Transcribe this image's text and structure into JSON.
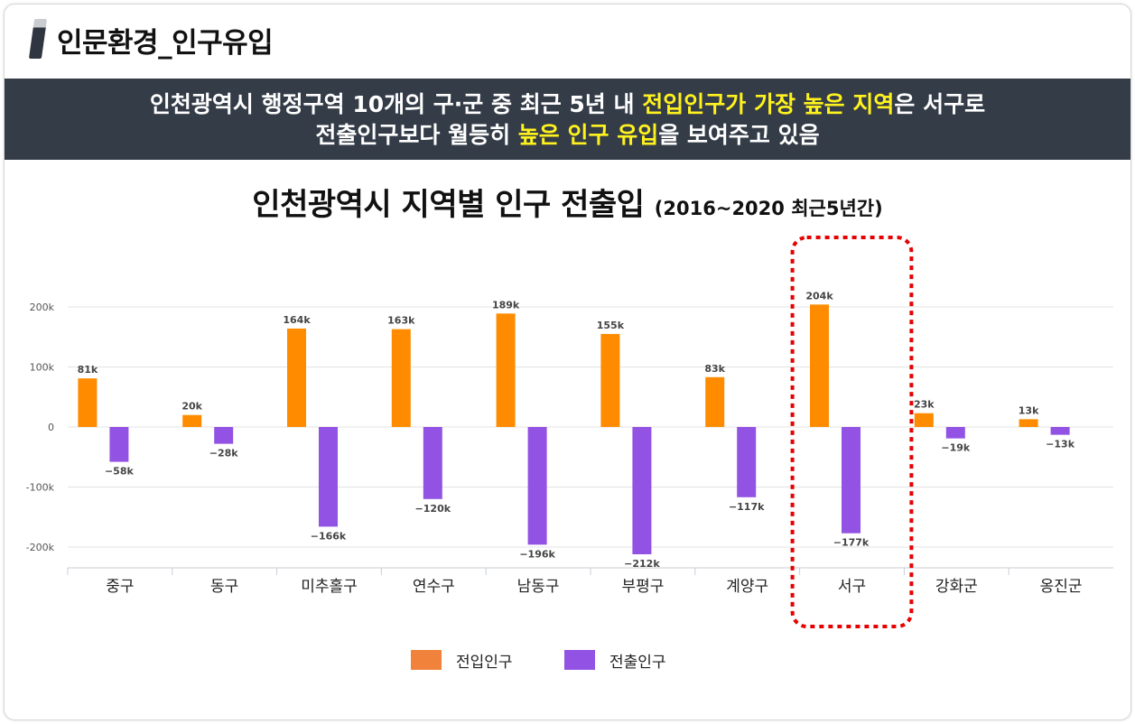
{
  "header": {
    "title": "인문환경_인구유입"
  },
  "banner": {
    "line1_a": "인천광역시 행정구역 10개의 구·군 중 최근 5년 내 ",
    "line1_hl": "전입인구가 가장 높은 지역",
    "line1_b": "은 서구로",
    "line2_a": "전출인구보다 월등히 ",
    "line2_hl": "높은 인구 유입",
    "line2_b": "을 보여주고 있음"
  },
  "chart_data": {
    "type": "bar",
    "title": "인천광역시 지역별 인구 전출입",
    "subtitle": "(2016~2020 최근5년간)",
    "categories": [
      "중구",
      "동구",
      "미추홀구",
      "연수구",
      "남동구",
      "부평구",
      "계양구",
      "서구",
      "강화군",
      "옹진군"
    ],
    "series": [
      {
        "name": "전입인구",
        "values": [
          81,
          20,
          164,
          163,
          189,
          155,
          83,
          204,
          23,
          13
        ],
        "labels": [
          "81k",
          "20k",
          "164k",
          "163k",
          "189k",
          "155k",
          "83k",
          "204k",
          "23k",
          "13k"
        ]
      },
      {
        "name": "전출인구",
        "values": [
          -58,
          -28,
          -166,
          -120,
          -196,
          -212,
          -117,
          -177,
          -19,
          -13
        ],
        "labels": [
          "−58k",
          "−28k",
          "−166k",
          "−120k",
          "−196k",
          "−212k",
          "−117k",
          "−177k",
          "−19k",
          "−13k"
        ]
      }
    ],
    "y_ticks": [
      200,
      100,
      0,
      -100,
      -200
    ],
    "y_tick_labels": [
      "200k",
      "100k",
      "0",
      "-100k",
      "-200k"
    ],
    "ylim": [
      -235,
      235
    ],
    "y_unit": "k",
    "grid": true,
    "legend_position": "bottom",
    "highlight_category": "서구"
  },
  "colors": {
    "inflow": "#ff8c00",
    "outflow": "#9252e3",
    "legend_inflow": "#f0823c",
    "legend_outflow": "#9252e3",
    "highlight_border": "#e60000",
    "banner_bg": "#343c48",
    "banner_highlight": "#fff21e"
  },
  "legend": {
    "items": [
      "전입인구",
      "전출인구"
    ]
  }
}
